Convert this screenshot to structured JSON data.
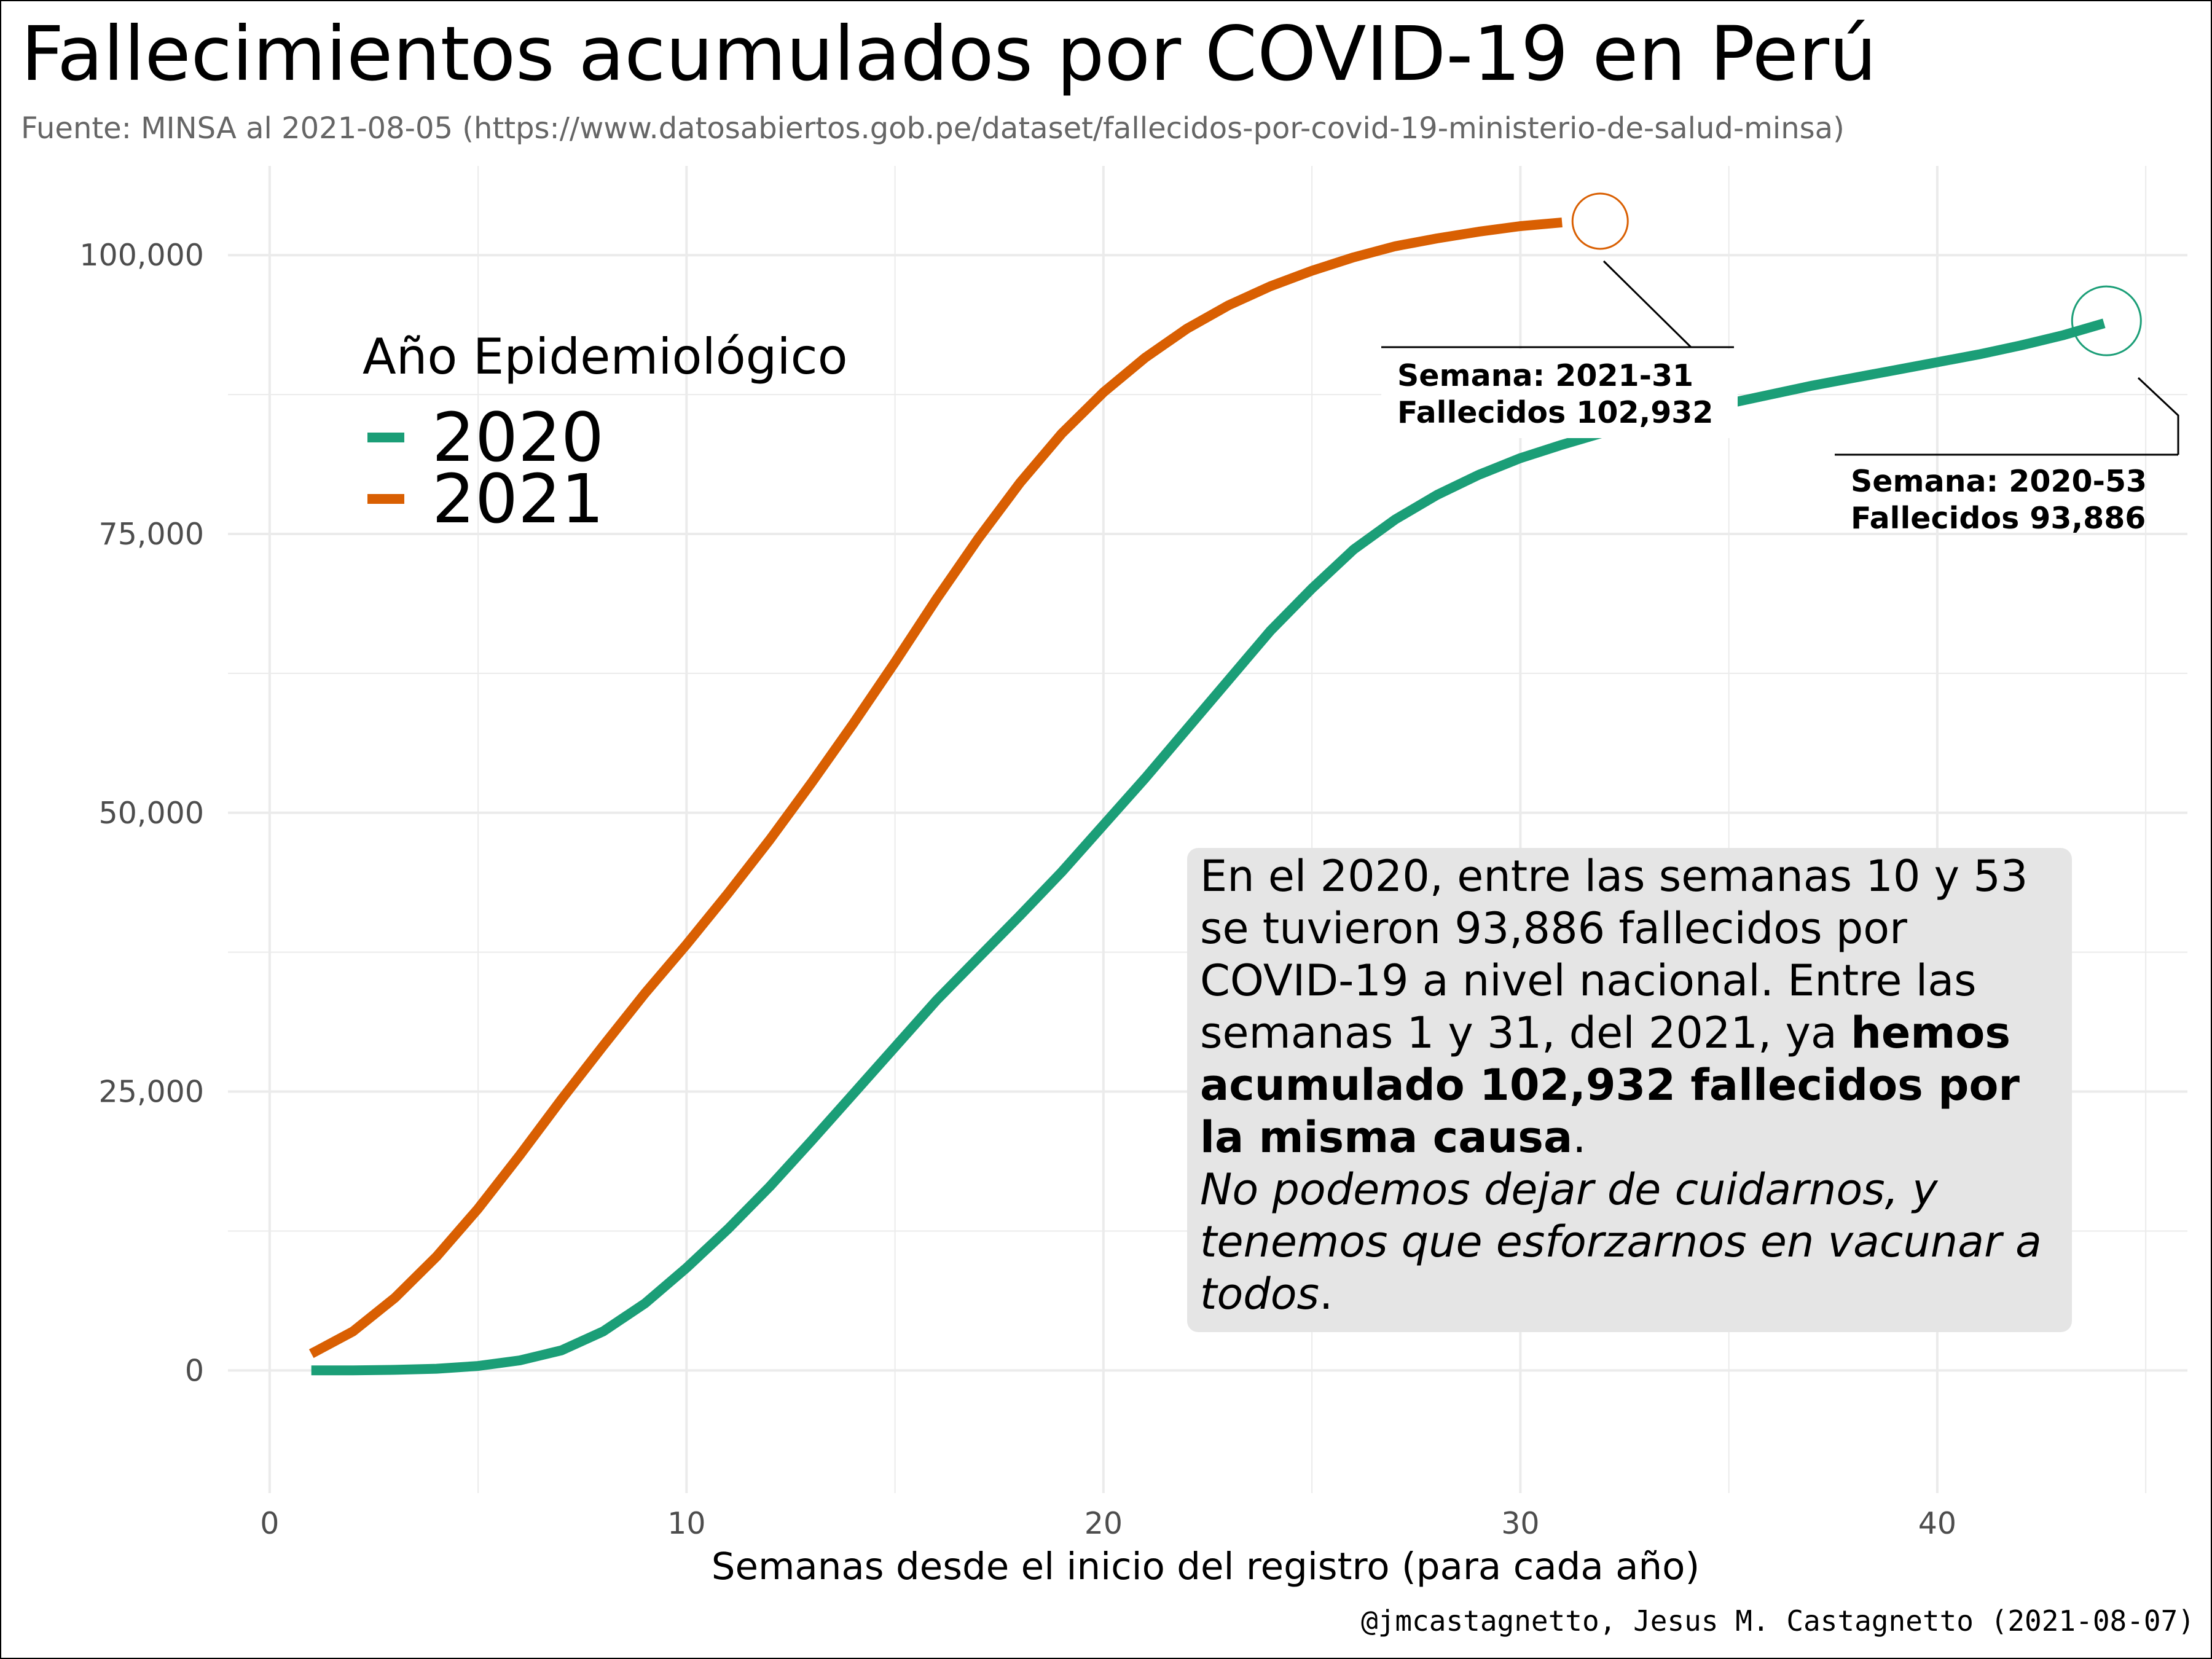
{
  "chart_data": {
    "type": "line",
    "title": "Fallecimientos acumulados por COVID-19 en Perú",
    "subtitle": "Fuente: MINSA al 2021-08-05 (https://www.datosabiertos.gob.pe/dataset/fallecidos-por-covid-19-ministerio-de-salud-minsa)",
    "xlabel": "Semanas desde el inicio del registro (para cada año)",
    "ylabel": "",
    "caption": "@jmcastagnetto, Jesus M. Castagnetto (2021-08-07)",
    "xlim": [
      -1,
      46
    ],
    "ylim": [
      -11000,
      108000
    ],
    "x_ticks": [
      0,
      10,
      20,
      30,
      40
    ],
    "x_tick_labels": [
      "0",
      "10",
      "20",
      "30",
      "40"
    ],
    "y_ticks": [
      0,
      25000,
      50000,
      75000,
      100000
    ],
    "y_tick_labels": [
      "0",
      "25,000",
      "50,000",
      "75,000",
      "100,000"
    ],
    "grid": true,
    "legend": {
      "title": "Año Epidemiológico",
      "position": "top-left"
    },
    "series": [
      {
        "name": "2020",
        "color": "#1b9e77",
        "x": [
          1,
          2,
          3,
          4,
          5,
          6,
          7,
          8,
          9,
          10,
          11,
          12,
          13,
          14,
          15,
          16,
          17,
          18,
          19,
          20,
          21,
          22,
          23,
          24,
          25,
          26,
          27,
          28,
          29,
          30,
          31,
          32,
          33,
          34,
          35,
          36,
          37,
          38,
          39,
          40,
          41,
          42,
          43,
          44
        ],
        "y": [
          0,
          0,
          50,
          150,
          400,
          900,
          1800,
          3500,
          6000,
          9200,
          12700,
          16500,
          20600,
          24800,
          29000,
          33200,
          37000,
          40800,
          44700,
          48900,
          53100,
          57500,
          61900,
          66300,
          70100,
          73600,
          76300,
          78500,
          80300,
          81800,
          83000,
          84100,
          85000,
          85900,
          86700,
          87500,
          88300,
          89000,
          89700,
          90400,
          91100,
          91900,
          92800,
          93886
        ]
      },
      {
        "name": "2021",
        "color": "#d95f02",
        "x": [
          1,
          2,
          3,
          4,
          5,
          6,
          7,
          8,
          9,
          10,
          11,
          12,
          13,
          14,
          15,
          16,
          17,
          18,
          19,
          20,
          21,
          22,
          23,
          24,
          25,
          26,
          27,
          28,
          29,
          30,
          31
        ],
        "y": [
          1500,
          3500,
          6500,
          10200,
          14500,
          19300,
          24300,
          29100,
          33800,
          38200,
          42800,
          47600,
          52700,
          58000,
          63500,
          69200,
          74600,
          79600,
          84000,
          87700,
          90800,
          93400,
          95500,
          97200,
          98600,
          99800,
          100800,
          101500,
          102100,
          102600,
          102932
        ]
      }
    ],
    "annotations": [
      {
        "series": "2021",
        "line1": "Semana: 2021-31",
        "line2": "Fallecidos 102,932"
      },
      {
        "series": "2020",
        "line1": "Semana: 2020-53",
        "line2": "Fallecidos  93,886"
      }
    ],
    "text_box": {
      "background": "#e5e5e5",
      "line1": "En el 2020, entre las semanas 10 y 53",
      "line2": "se tuvieron 93,886 fallecidos por",
      "line3": "COVID-19 a nivel nacional. Entre las",
      "line4_normal": "semanas 1 y 31, del 2021, ya ",
      "line4_bold": "hemos",
      "line5_bold": "acumulado 102,932 fallecidos por",
      "line6_bold": "la misma causa",
      "line6_end": ".",
      "line7_italic": "No podemos dejar de cuidarnos, y",
      "line8_italic": "tenemos que esforzarnos en vacunar a",
      "line9_italic": "todos",
      "line9_end": "."
    }
  }
}
